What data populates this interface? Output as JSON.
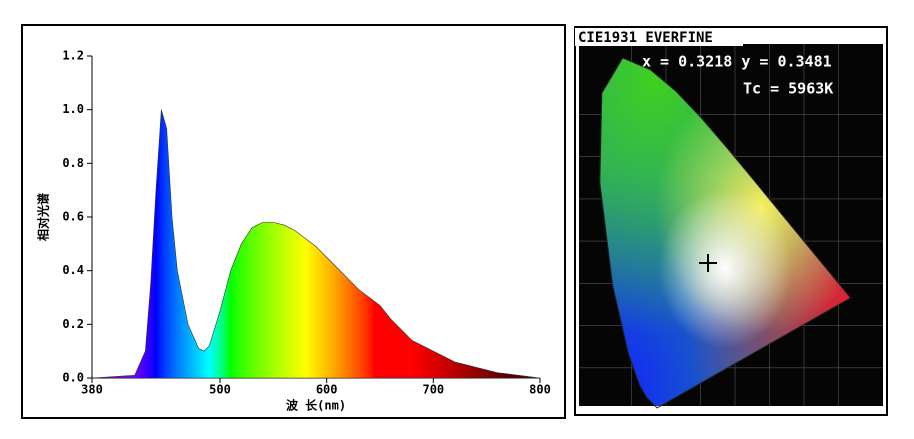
{
  "chart_data": [
    {
      "type": "area",
      "xlabel": "波 长(nm)",
      "ylabel": "相对光谱",
      "x": [
        380,
        420,
        430,
        435,
        440,
        445,
        450,
        455,
        460,
        470,
        480,
        485,
        490,
        500,
        510,
        520,
        530,
        540,
        550,
        560,
        570,
        580,
        590,
        600,
        610,
        620,
        630,
        640,
        650,
        660,
        670,
        680,
        690,
        700,
        720,
        740,
        760,
        780,
        800
      ],
      "values": [
        0,
        0.01,
        0.1,
        0.35,
        0.7,
        1.0,
        0.93,
        0.6,
        0.4,
        0.2,
        0.11,
        0.1,
        0.12,
        0.25,
        0.4,
        0.5,
        0.56,
        0.58,
        0.58,
        0.57,
        0.55,
        0.52,
        0.49,
        0.45,
        0.41,
        0.37,
        0.33,
        0.3,
        0.27,
        0.22,
        0.18,
        0.14,
        0.12,
        0.1,
        0.06,
        0.04,
        0.02,
        0.01,
        0
      ],
      "xlim": [
        380,
        800
      ],
      "xticks": [
        380,
        500,
        600,
        700,
        800
      ],
      "ylim": [
        0,
        1.2
      ],
      "yticks": [
        {
          "value": 0,
          "label": "0.0"
        },
        0.2,
        0.4,
        0.6,
        0.8,
        {
          "value": 1,
          "label": "1.0"
        },
        1.2
      ],
      "fill": "spectrum"
    },
    {
      "type": "cie",
      "title": "CIE1931 EVERFINE",
      "annotations": [
        "x = 0.3218 y = 0.3481",
        "Tc = 5963K"
      ],
      "x": [
        0.3218
      ],
      "values": [
        0.3481
      ],
      "xlim": [
        0,
        0.8
      ],
      "ylim": [
        0,
        0.9
      ]
    }
  ]
}
